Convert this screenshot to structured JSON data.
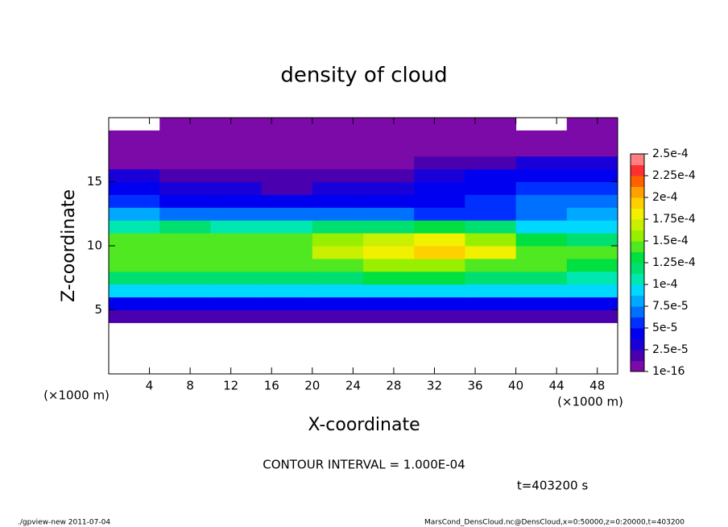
{
  "chart_data": {
    "type": "heatmap",
    "title": "density of cloud",
    "x_label": "X-coordinate",
    "y_label": "Z-coordinate",
    "x_unit": "(×1000 m)",
    "y_unit": "(×1000 m)",
    "contour_note": "CONTOUR INTERVAL = 1.000E-04",
    "time_note": "t=403200 s",
    "footer_left": "./gpview-new  2011-07-04",
    "footer_right": "MarsCond_DensCloud.nc@DensCloud,x=0:50000,z=0:20000,t=403200",
    "x": [
      0,
      5,
      10,
      15,
      20,
      25,
      30,
      35,
      40,
      45,
      50
    ],
    "y": [
      0,
      1,
      2,
      3,
      4,
      5,
      6,
      7,
      8,
      9,
      10,
      11,
      12,
      13,
      14,
      15,
      16,
      17,
      18,
      19,
      20
    ],
    "values": [
      [
        null,
        null,
        null,
        null,
        null,
        null,
        null,
        null,
        null,
        null
      ],
      [
        null,
        null,
        null,
        null,
        null,
        null,
        null,
        null,
        null,
        null
      ],
      [
        null,
        null,
        null,
        null,
        null,
        null,
        null,
        null,
        null,
        null
      ],
      [
        null,
        null,
        null,
        null,
        null,
        null,
        null,
        null,
        null,
        null
      ],
      [
        2e-05,
        2e-05,
        2e-05,
        2e-05,
        2e-05,
        2e-05,
        2e-05,
        2e-05,
        2e-05,
        2e-05
      ],
      [
        4e-05,
        4e-05,
        4e-05,
        4e-05,
        4e-05,
        4e-05,
        4e-05,
        4e-05,
        4e-05,
        4e-05
      ],
      [
        9e-05,
        9e-05,
        9e-05,
        9e-05,
        9e-05,
        9e-05,
        9e-05,
        9e-05,
        9e-05,
        9e-05
      ],
      [
        0.00012,
        0.00012,
        0.00012,
        0.00012,
        0.000125,
        0.00013,
        0.00013,
        0.000125,
        0.00012,
        0.00011
      ],
      [
        0.00014,
        0.00014,
        0.00014,
        0.000145,
        0.00015,
        0.000155,
        0.000155,
        0.00015,
        0.00014,
        0.00013
      ],
      [
        0.000145,
        0.00015,
        0.000145,
        0.00015,
        0.00017,
        0.000185,
        0.00019,
        0.00018,
        0.00015,
        0.00014
      ],
      [
        0.00014,
        0.000145,
        0.00014,
        0.000145,
        0.00016,
        0.000175,
        0.00018,
        0.00016,
        0.00013,
        0.00012
      ],
      [
        0.00011,
        0.000115,
        0.00011,
        0.00011,
        0.00012,
        0.000125,
        0.00013,
        0.00012,
        0.0001,
        9e-05
      ],
      [
        8e-05,
        7.5e-05,
        7e-05,
        7e-05,
        7e-05,
        6.5e-05,
        6e-05,
        6e-05,
        7e-05,
        8e-05
      ],
      [
        5.5e-05,
        5e-05,
        4.5e-05,
        4e-05,
        4e-05,
        4.5e-05,
        5e-05,
        6e-05,
        7e-05,
        7e-05
      ],
      [
        4e-05,
        3.5e-05,
        3e-05,
        2.5e-05,
        3e-05,
        3.5e-05,
        4e-05,
        5e-05,
        6e-05,
        6e-05
      ],
      [
        3e-05,
        2.5e-05,
        2e-05,
        1.5e-05,
        2e-05,
        2.5e-05,
        3e-05,
        4e-05,
        4.5e-05,
        4.5e-05
      ],
      [
        1e-05,
        8e-06,
        6e-06,
        5e-06,
        8e-06,
        1e-05,
        1.5e-05,
        2.5e-05,
        3e-05,
        3e-05
      ],
      [
        5e-06,
        5e-06,
        5e-06,
        5e-06,
        5e-06,
        5e-06,
        5e-06,
        8e-06,
        1e-05,
        1e-05
      ],
      [
        3e-06,
        3e-06,
        3e-06,
        3e-06,
        3e-06,
        3e-06,
        3e-06,
        3e-06,
        5e-06,
        5e-06
      ],
      [
        null,
        1e-06,
        1e-06,
        1e-06,
        1e-06,
        1e-06,
        1e-06,
        1e-06,
        null,
        1e-06
      ]
    ],
    "xlim": [
      0,
      50
    ],
    "ylim": [
      0,
      20
    ],
    "xticks": [
      4,
      8,
      12,
      16,
      20,
      24,
      28,
      32,
      36,
      40,
      44,
      48
    ],
    "yticks": [
      5,
      10,
      15
    ],
    "colorbar": {
      "lim": [
        1e-16,
        0.00025
      ],
      "ticks": [
        {
          "value": 1e-16,
          "label": "1e-16"
        },
        {
          "value": 2.5e-05,
          "label": "2.5e-5"
        },
        {
          "value": 5e-05,
          "label": "5e-5"
        },
        {
          "value": 7.5e-05,
          "label": "7.5e-5"
        },
        {
          "value": 0.0001,
          "label": "1e-4"
        },
        {
          "value": 0.000125,
          "label": "1.25e-4"
        },
        {
          "value": 0.00015,
          "label": "1.5e-4"
        },
        {
          "value": 0.000175,
          "label": "1.75e-4"
        },
        {
          "value": 0.0002,
          "label": "2e-4"
        },
        {
          "value": 0.000225,
          "label": "2.25e-4"
        },
        {
          "value": 0.00025,
          "label": "2.5e-4"
        }
      ],
      "colors": [
        "#7b0aa8",
        "#4b00b0",
        "#1a00d8",
        "#0000f0",
        "#0030ff",
        "#0070ff",
        "#00a8ff",
        "#00d8ff",
        "#00e8b0",
        "#00e070",
        "#00e040",
        "#50e820",
        "#98f000",
        "#c8f000",
        "#f0f000",
        "#ffd000",
        "#ffa000",
        "#ff6000",
        "#ff3030",
        "#ff8080"
      ]
    }
  }
}
